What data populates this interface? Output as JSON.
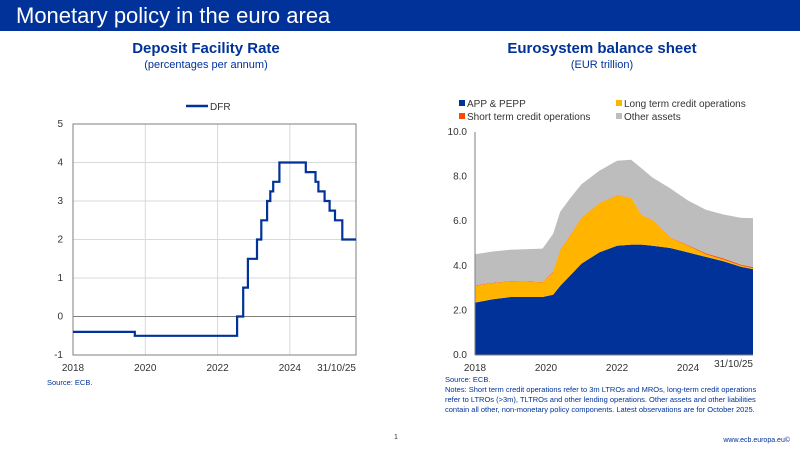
{
  "header": {
    "title": "Monetary policy in the euro area"
  },
  "left_panel": {
    "title": "Deposit Facility Rate",
    "subtitle": "(percentages per annum)",
    "source": "Source: ECB."
  },
  "right_panel": {
    "title": "Eurosystem balance sheet",
    "subtitle": "(EUR trillion)",
    "source": "Source: ECB.",
    "notes": "Notes: Short term credit operations refer to 3m LTROs and MROs, long-term credit operations refer to LTROs (>3m), TLTROs and other lending operations. Other assets and other liabilities contain all other, non-monetary policy components. Latest observations are for October 2025."
  },
  "footer": {
    "page_number": "1",
    "url": "www.ecb.europa.eu©"
  },
  "colors": {
    "brand": "#003299",
    "app": "#003299",
    "ltro": "#FFB400",
    "str": "#FF4B00",
    "other": "#BDBDBD"
  },
  "chart_data": [
    {
      "type": "line",
      "title": "Deposit Facility Rate",
      "ylabel": "percentages per annum",
      "ylim": [
        -1,
        5
      ],
      "yticks": [
        "5",
        "4",
        "3",
        "2",
        "1",
        "0",
        "-1"
      ],
      "xlim": [
        2018,
        2025.83
      ],
      "xticks": [
        {
          "x": 2018,
          "label": "2018"
        },
        {
          "x": 2020,
          "label": "2020"
        },
        {
          "x": 2022,
          "label": "2022"
        },
        {
          "x": 2024,
          "label": "2024"
        },
        {
          "x": 2025.83,
          "label": "31/10/25"
        }
      ],
      "series": [
        {
          "name": "DFR",
          "color": "#003299",
          "x": [
            2018.0,
            2019.71,
            2022.54,
            2022.71,
            2022.84,
            2023.09,
            2023.21,
            2023.37,
            2023.46,
            2023.54,
            2023.71,
            2024.44,
            2024.71,
            2024.79,
            2024.96,
            2025.1,
            2025.25,
            2025.45,
            2025.83
          ],
          "values": [
            -0.4,
            -0.5,
            0.0,
            0.75,
            1.5,
            2.0,
            2.5,
            3.0,
            3.25,
            3.5,
            4.0,
            3.75,
            3.5,
            3.25,
            3.0,
            2.75,
            2.5,
            2.0,
            2.0
          ]
        }
      ]
    },
    {
      "type": "area",
      "stacked": true,
      "title": "Eurosystem balance sheet",
      "ylabel": "EUR trillion",
      "ylim": [
        0,
        10
      ],
      "yticks": [
        "10.0",
        "8.0",
        "6.0",
        "4.0",
        "2.0",
        "0.0"
      ],
      "xlim": [
        2018,
        2025.83
      ],
      "xticks": [
        {
          "x": 2018,
          "label": "2018"
        },
        {
          "x": 2020,
          "label": "2020"
        },
        {
          "x": 2022,
          "label": "2022"
        },
        {
          "x": 2024,
          "label": "2024"
        },
        {
          "x": 2025.83,
          "label": "31/10/25"
        }
      ],
      "x": [
        2018.0,
        2018.5,
        2019.0,
        2019.5,
        2019.9,
        2020.2,
        2020.4,
        2020.7,
        2021.0,
        2021.5,
        2022.0,
        2022.4,
        2022.7,
        2023.0,
        2023.5,
        2024.0,
        2024.5,
        2025.0,
        2025.5,
        2025.83
      ],
      "series": [
        {
          "name": "APP & PEPP",
          "color": "#003299",
          "values": [
            2.35,
            2.5,
            2.6,
            2.6,
            2.6,
            2.7,
            3.1,
            3.6,
            4.1,
            4.6,
            4.9,
            4.95,
            4.95,
            4.9,
            4.8,
            4.6,
            4.4,
            4.2,
            3.95,
            3.85
          ]
        },
        {
          "name": "Long term credit operations",
          "color": "#FFB400",
          "values": [
            0.75,
            0.72,
            0.7,
            0.68,
            0.65,
            1.0,
            1.6,
            1.8,
            2.05,
            2.2,
            2.25,
            2.1,
            1.3,
            1.15,
            0.45,
            0.3,
            0.12,
            0.08,
            0.05,
            0.04
          ]
        },
        {
          "name": "Short term credit operations",
          "color": "#FF4B00",
          "values": [
            0.02,
            0.02,
            0.02,
            0.02,
            0.02,
            0.03,
            0.02,
            0.02,
            0.01,
            0.01,
            0.01,
            0.01,
            0.01,
            0.01,
            0.02,
            0.03,
            0.04,
            0.05,
            0.05,
            0.05
          ]
        },
        {
          "name": "Other assets",
          "color": "#BDBDBD",
          "values": [
            1.4,
            1.4,
            1.4,
            1.45,
            1.5,
            1.7,
            1.7,
            1.65,
            1.5,
            1.45,
            1.55,
            1.7,
            2.1,
            1.9,
            2.2,
            2.0,
            1.95,
            1.97,
            2.1,
            2.2
          ]
        }
      ]
    }
  ]
}
